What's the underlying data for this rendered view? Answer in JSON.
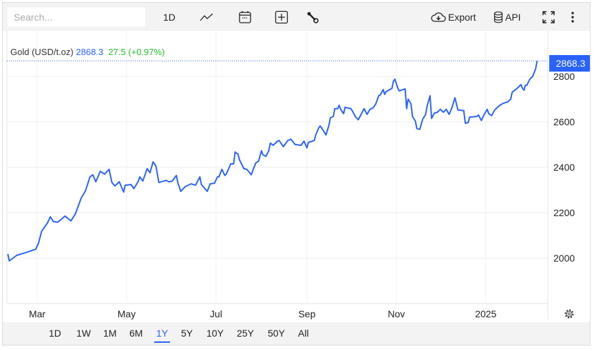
{
  "toolbar": {
    "search_placeholder": "Search...",
    "interval": "1D",
    "icons": [
      "line-chart-icon",
      "calendar-icon",
      "add-indicator-icon",
      "wrench-icon"
    ],
    "export_label": "Export",
    "api_label": "API"
  },
  "legend": {
    "name": "Gold (USD/t.oz)",
    "price": "2868.3",
    "change": "27.5 (+0.97%)",
    "price_color": "#2962ff",
    "change_color": "#22c02a"
  },
  "price_tag": "2868.3",
  "range_buttons": [
    "1D",
    "1W",
    "1M",
    "6M",
    "1Y",
    "5Y",
    "10Y",
    "25Y",
    "50Y",
    "All"
  ],
  "selected_range": "1Y",
  "chart_data": {
    "type": "line",
    "series_color": "#2962ff",
    "grid": true,
    "ylim": [
      1800,
      2900
    ],
    "yticks": [
      2000,
      2200,
      2400,
      2600,
      2800
    ],
    "ytick_labels": [
      "2000",
      "2200",
      "2400",
      "2600",
      "2800"
    ],
    "xticks": [
      "2024-03-01",
      "2024-05-01",
      "2024-07-01",
      "2024-09-01",
      "2024-11-01",
      "2025-01-01"
    ],
    "xtick_labels": [
      "Mar",
      "May",
      "Jul",
      "Sep",
      "Nov",
      "2025"
    ],
    "last_value": 2868.3,
    "points": [
      [
        "2024-02-10",
        2018
      ],
      [
        "2024-02-11",
        1988
      ],
      [
        "2024-02-16",
        2012
      ],
      [
        "2024-02-22",
        2024
      ],
      [
        "2024-02-29",
        2039
      ],
      [
        "2024-03-02",
        2067
      ],
      [
        "2024-03-04",
        2118
      ],
      [
        "2024-03-08",
        2155
      ],
      [
        "2024-03-10",
        2182
      ],
      [
        "2024-03-12",
        2161
      ],
      [
        "2024-03-15",
        2158
      ],
      [
        "2024-03-20",
        2185
      ],
      [
        "2024-03-24",
        2164
      ],
      [
        "2024-03-27",
        2194
      ],
      [
        "2024-03-31",
        2264
      ],
      [
        "2024-04-03",
        2297
      ],
      [
        "2024-04-06",
        2358
      ],
      [
        "2024-04-08",
        2367
      ],
      [
        "2024-04-10",
        2336
      ],
      [
        "2024-04-13",
        2382
      ],
      [
        "2024-04-16",
        2370
      ],
      [
        "2024-04-19",
        2391
      ],
      [
        "2024-04-21",
        2333
      ],
      [
        "2024-04-23",
        2318
      ],
      [
        "2024-04-26",
        2336
      ],
      [
        "2024-04-29",
        2291
      ],
      [
        "2024-04-30",
        2321
      ],
      [
        "2024-05-04",
        2324
      ],
      [
        "2024-05-06",
        2306
      ],
      [
        "2024-05-09",
        2339
      ],
      [
        "2024-05-10",
        2358
      ],
      [
        "2024-05-12",
        2339
      ],
      [
        "2024-05-15",
        2394
      ],
      [
        "2024-05-17",
        2376
      ],
      [
        "2024-05-19",
        2424
      ],
      [
        "2024-05-21",
        2406
      ],
      [
        "2024-05-23",
        2333
      ],
      [
        "2024-05-28",
        2342
      ],
      [
        "2024-05-30",
        2336
      ],
      [
        "2024-06-01",
        2339
      ],
      [
        "2024-06-04",
        2364
      ],
      [
        "2024-06-05",
        2330
      ],
      [
        "2024-06-07",
        2294
      ],
      [
        "2024-06-10",
        2315
      ],
      [
        "2024-06-14",
        2327
      ],
      [
        "2024-06-17",
        2321
      ],
      [
        "2024-06-20",
        2358
      ],
      [
        "2024-06-21",
        2324
      ],
      [
        "2024-06-25",
        2294
      ],
      [
        "2024-06-27",
        2327
      ],
      [
        "2024-06-30",
        2330
      ],
      [
        "2024-07-02",
        2358
      ],
      [
        "2024-07-03",
        2358
      ],
      [
        "2024-07-05",
        2391
      ],
      [
        "2024-07-07",
        2364
      ],
      [
        "2024-07-08",
        2370
      ],
      [
        "2024-07-11",
        2415
      ],
      [
        "2024-07-13",
        2415
      ],
      [
        "2024-07-14",
        2467
      ],
      [
        "2024-07-16",
        2458
      ],
      [
        "2024-07-17",
        2433
      ],
      [
        "2024-07-20",
        2394
      ],
      [
        "2024-07-22",
        2391
      ],
      [
        "2024-07-25",
        2367
      ],
      [
        "2024-07-28",
        2418
      ],
      [
        "2024-07-30",
        2427
      ],
      [
        "2024-08-01",
        2473
      ],
      [
        "2024-08-02",
        2455
      ],
      [
        "2024-08-04",
        2448
      ],
      [
        "2024-08-06",
        2473
      ],
      [
        "2024-08-07",
        2506
      ],
      [
        "2024-08-09",
        2497
      ],
      [
        "2024-08-12",
        2515
      ],
      [
        "2024-08-13",
        2518
      ],
      [
        "2024-08-16",
        2491
      ],
      [
        "2024-08-19",
        2518
      ],
      [
        "2024-08-21",
        2524
      ],
      [
        "2024-08-24",
        2500
      ],
      [
        "2024-08-28",
        2497
      ],
      [
        "2024-08-30",
        2515
      ],
      [
        "2024-09-01",
        2485
      ],
      [
        "2024-09-02",
        2509
      ],
      [
        "2024-09-06",
        2518
      ],
      [
        "2024-09-07",
        2542
      ],
      [
        "2024-09-09",
        2573
      ],
      [
        "2024-09-10",
        2582
      ],
      [
        "2024-09-12",
        2564
      ],
      [
        "2024-09-14",
        2542
      ],
      [
        "2024-09-16",
        2585
      ],
      [
        "2024-09-17",
        2618
      ],
      [
        "2024-09-19",
        2624
      ],
      [
        "2024-09-20",
        2658
      ],
      [
        "2024-09-22",
        2658
      ],
      [
        "2024-09-23",
        2673
      ],
      [
        "2024-09-24",
        2655
      ],
      [
        "2024-09-26",
        2636
      ],
      [
        "2024-09-27",
        2664
      ],
      [
        "2024-10-01",
        2658
      ],
      [
        "2024-10-02",
        2648
      ],
      [
        "2024-10-04",
        2624
      ],
      [
        "2024-10-06",
        2609
      ],
      [
        "2024-10-08",
        2633
      ],
      [
        "2024-10-10",
        2658
      ],
      [
        "2024-10-12",
        2633
      ],
      [
        "2024-10-14",
        2655
      ],
      [
        "2024-10-16",
        2661
      ],
      [
        "2024-10-18",
        2679
      ],
      [
        "2024-10-20",
        2715
      ],
      [
        "2024-10-21",
        2718
      ],
      [
        "2024-10-23",
        2742
      ],
      [
        "2024-10-24",
        2721
      ],
      [
        "2024-10-25",
        2733
      ],
      [
        "2024-10-29",
        2748
      ],
      [
        "2024-10-30",
        2779
      ],
      [
        "2024-10-31",
        2788
      ],
      [
        "2024-11-02",
        2748
      ],
      [
        "2024-11-03",
        2736
      ],
      [
        "2024-11-07",
        2745
      ],
      [
        "2024-11-08",
        2658
      ],
      [
        "2024-11-09",
        2700
      ],
      [
        "2024-11-11",
        2679
      ],
      [
        "2024-11-12",
        2624
      ],
      [
        "2024-11-14",
        2603
      ],
      [
        "2024-11-15",
        2570
      ],
      [
        "2024-11-17",
        2567
      ],
      [
        "2024-11-19",
        2612
      ],
      [
        "2024-11-21",
        2633
      ],
      [
        "2024-11-22",
        2670
      ],
      [
        "2024-11-24",
        2715
      ],
      [
        "2024-11-25",
        2615
      ],
      [
        "2024-11-27",
        2639
      ],
      [
        "2024-11-29",
        2642
      ],
      [
        "2024-12-01",
        2655
      ],
      [
        "2024-12-03",
        2642
      ],
      [
        "2024-12-05",
        2655
      ],
      [
        "2024-12-07",
        2633
      ],
      [
        "2024-12-09",
        2664
      ],
      [
        "2024-12-11",
        2706
      ],
      [
        "2024-12-13",
        2652
      ],
      [
        "2024-12-17",
        2649
      ],
      [
        "2024-12-18",
        2594
      ],
      [
        "2024-12-20",
        2597
      ],
      [
        "2024-12-21",
        2621
      ],
      [
        "2024-12-26",
        2624
      ],
      [
        "2024-12-27",
        2630
      ],
      [
        "2024-12-29",
        2606
      ],
      [
        "2024-12-31",
        2633
      ],
      [
        "2025-01-02",
        2655
      ],
      [
        "2025-01-03",
        2636
      ],
      [
        "2025-01-05",
        2627
      ],
      [
        "2025-01-07",
        2652
      ],
      [
        "2025-01-10",
        2670
      ],
      [
        "2025-01-13",
        2682
      ],
      [
        "2025-01-16",
        2688
      ],
      [
        "2025-01-18",
        2700
      ],
      [
        "2025-01-19",
        2730
      ],
      [
        "2025-01-22",
        2745
      ],
      [
        "2025-01-25",
        2764
      ],
      [
        "2025-01-26",
        2748
      ],
      [
        "2025-01-27",
        2739
      ],
      [
        "2025-01-28",
        2761
      ],
      [
        "2025-01-29",
        2761
      ],
      [
        "2025-01-31",
        2788
      ],
      [
        "2025-02-02",
        2800
      ],
      [
        "2025-02-04",
        2833
      ],
      [
        "2025-02-05",
        2868.3
      ]
    ]
  }
}
